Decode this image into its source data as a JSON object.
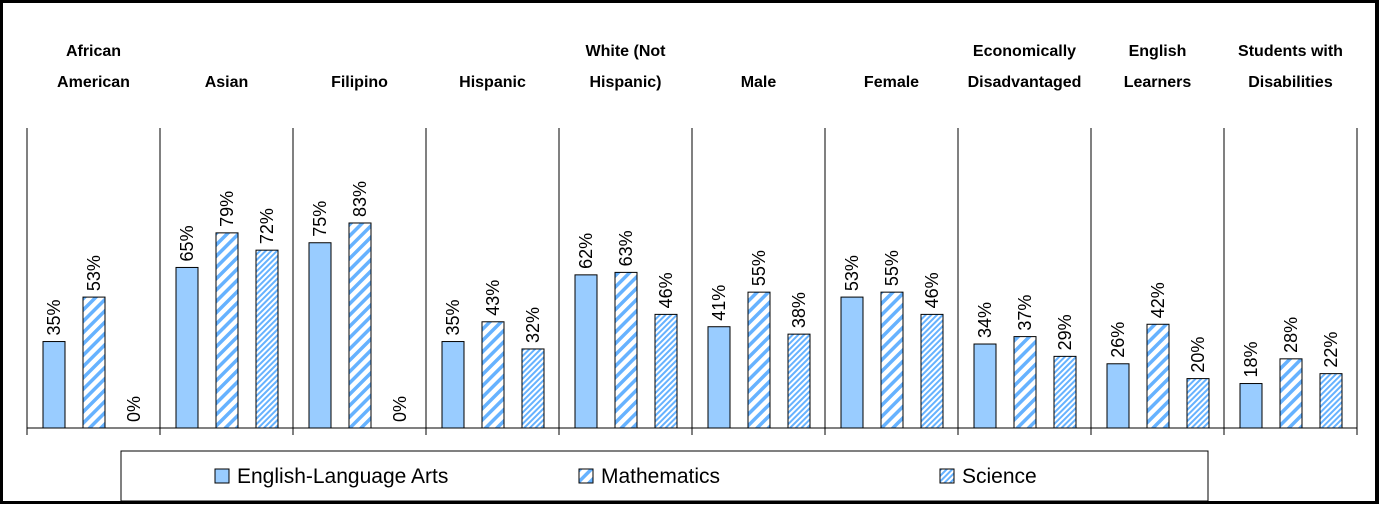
{
  "chart_data": {
    "type": "bar",
    "categories": [
      [
        "African",
        "American"
      ],
      [
        "Asian"
      ],
      [
        "Filipino"
      ],
      [
        "Hispanic"
      ],
      [
        "White (Not",
        "Hispanic)"
      ],
      [
        "Male"
      ],
      [
        "Female"
      ],
      [
        "Economically",
        "Disadvantaged"
      ],
      [
        "English",
        "Learners"
      ],
      [
        "Students with",
        "Disabilities"
      ]
    ],
    "series": [
      {
        "name": "English-Language Arts",
        "values": [
          35,
          65,
          75,
          35,
          62,
          41,
          53,
          34,
          26,
          18
        ]
      },
      {
        "name": "Mathematics",
        "values": [
          53,
          79,
          83,
          43,
          63,
          55,
          55,
          37,
          42,
          28
        ]
      },
      {
        "name": "Science",
        "values": [
          0,
          72,
          0,
          32,
          46,
          38,
          46,
          29,
          20,
          22
        ]
      }
    ],
    "value_suffix": "%",
    "ylim": [
      0,
      100
    ],
    "grid": false,
    "legend_position": "bottom",
    "colors": {
      "ela_fill": "#99ccff",
      "math_stripe": "#66b2ff",
      "science_stripe": "#66b2ff",
      "outline": "#000000"
    }
  }
}
